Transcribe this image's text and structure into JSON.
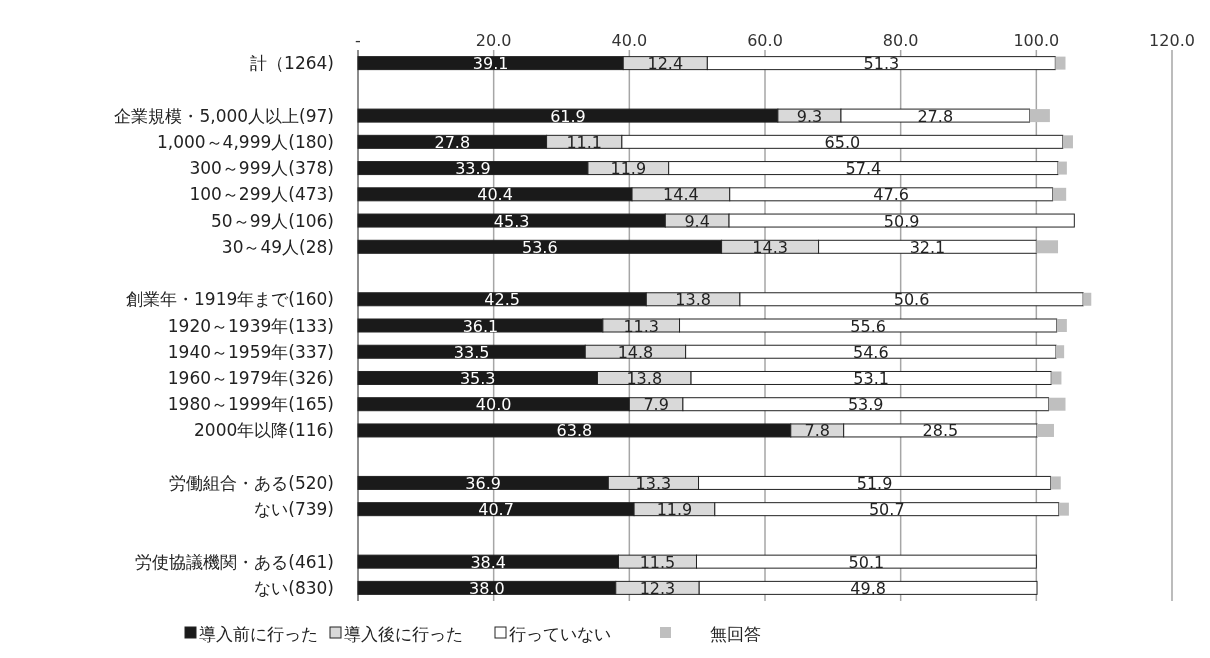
{
  "chart_data": {
    "type": "bar",
    "orientation": "horizontal",
    "stacked": true,
    "categories": [
      "計（1264)",
      null,
      "企業規模・5,000人以上(97)",
      "1,000～4,999人(180)",
      "300～999人(378)",
      "100～299人(473)",
      "50～99人(106)",
      "30～49人(28)",
      null,
      "創業年・1919年まで(160)",
      "1920～1939年(133)",
      "1940～1959年(337)",
      "1960～1979年(326)",
      "1980～1999年(165)",
      "2000年以降(116)",
      null,
      "労働組合・ある(520)",
      "ない(739)",
      null,
      "労使協議機関・ある(461)",
      "ない(830)"
    ],
    "series": [
      {
        "name": "導入前に行った",
        "color": "#1a1a1a",
        "values": [
          39.1,
          null,
          61.9,
          27.8,
          33.9,
          40.4,
          45.3,
          53.6,
          null,
          42.5,
          36.1,
          33.5,
          35.3,
          40.0,
          63.8,
          null,
          36.9,
          40.7,
          null,
          38.4,
          38.0
        ],
        "value_labels": [
          "39.1",
          null,
          "61.9",
          "27.8",
          "33.9",
          "40.4",
          "45.3",
          "53.6",
          null,
          "42.5",
          "36.1",
          "33.5",
          "35.3",
          "40.0",
          "63.8",
          null,
          "36.9",
          "40.7",
          null,
          "38.4",
          "38.0"
        ]
      },
      {
        "name": "導入後に行った",
        "color": "#d9d9d9",
        "values": [
          12.4,
          null,
          9.3,
          11.1,
          11.9,
          14.4,
          9.4,
          14.3,
          null,
          13.8,
          11.3,
          14.8,
          13.8,
          7.9,
          7.8,
          null,
          13.3,
          11.9,
          null,
          11.5,
          12.3
        ],
        "value_labels": [
          "12.4",
          null,
          "9.3",
          "11.1",
          "11.9",
          "14.4",
          "9.4",
          "14.3",
          null,
          "13.8",
          "11.3",
          "14.8",
          "13.8",
          "7.9",
          "7.8",
          null,
          "13.3",
          "11.9",
          null,
          "11.5",
          "12.3"
        ]
      },
      {
        "name": "行っていない",
        "color": "#ffffff",
        "values": [
          51.3,
          null,
          27.8,
          65.0,
          57.4,
          47.6,
          50.9,
          32.1,
          null,
          50.6,
          55.6,
          54.6,
          53.1,
          53.9,
          28.5,
          null,
          51.9,
          50.7,
          null,
          50.1,
          49.8
        ],
        "value_labels": [
          "51.3",
          null,
          "27.8",
          "65.0",
          "57.4",
          "47.6",
          "50.9",
          "32.1",
          null,
          "50.6",
          "55.6",
          "54.6",
          "53.1",
          "53.9",
          "28.5",
          null,
          "51.9",
          "50.7",
          null,
          "50.1",
          "49.8"
        ]
      },
      {
        "name": "無回答",
        "color": "#bfbfbf",
        "values": [
          1.5,
          null,
          3.0,
          1.5,
          1.3,
          2.0,
          0,
          3.2,
          null,
          1.2,
          1.5,
          1.2,
          1.5,
          2.5,
          2.5,
          null,
          1.5,
          1.5,
          null,
          0,
          0
        ]
      }
    ],
    "xlim": [
      0,
      120
    ],
    "xticks": [
      {
        "value": 0,
        "label": "-"
      },
      {
        "value": 20,
        "label": "20.0"
      },
      {
        "value": 40,
        "label": "40.0"
      },
      {
        "value": 60,
        "label": "60.0"
      },
      {
        "value": 80,
        "label": "80.0"
      },
      {
        "value": 100,
        "label": "100.0"
      },
      {
        "value": 120,
        "label": "120.0"
      }
    ],
    "grid": "x",
    "legend": "bottom"
  }
}
